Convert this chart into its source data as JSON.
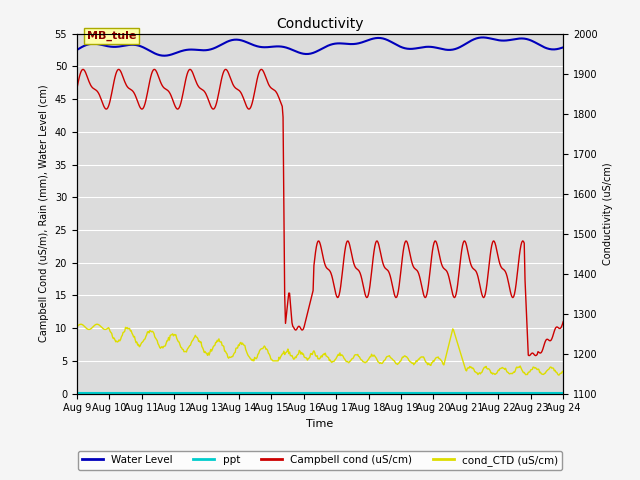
{
  "title": "Conductivity",
  "xlabel": "Time",
  "ylabel_left": "Campbell Cond (uS/m), Rain (mm), Water Level (cm)",
  "ylabel_right": "Conductivity (uS/cm)",
  "ylim_left": [
    0,
    55
  ],
  "ylim_right": [
    1100,
    2000
  ],
  "xlim": [
    0,
    15
  ],
  "xtick_labels": [
    "Aug 9",
    "Aug 10",
    "Aug 11",
    "Aug 12",
    "Aug 13",
    "Aug 14",
    "Aug 15",
    "Aug 16",
    "Aug 17",
    "Aug 18",
    "Aug 19",
    "Aug 20",
    "Aug 21",
    "Aug 22",
    "Aug 23",
    "Aug 24"
  ],
  "site_label": "MB_tule",
  "bg_color": "#dcdcdc",
  "fig_bg_color": "#f5f5f5",
  "legend_entries": [
    "Water Level",
    "ppt",
    "Campbell cond (uS/cm)",
    "cond_CTD (uS/cm)"
  ],
  "legend_colors": [
    "#0000bb",
    "#00cccc",
    "#cc0000",
    "#dddd00"
  ],
  "title_fontsize": 10,
  "axis_label_fontsize": 7,
  "tick_fontsize": 7,
  "legend_fontsize": 7.5
}
